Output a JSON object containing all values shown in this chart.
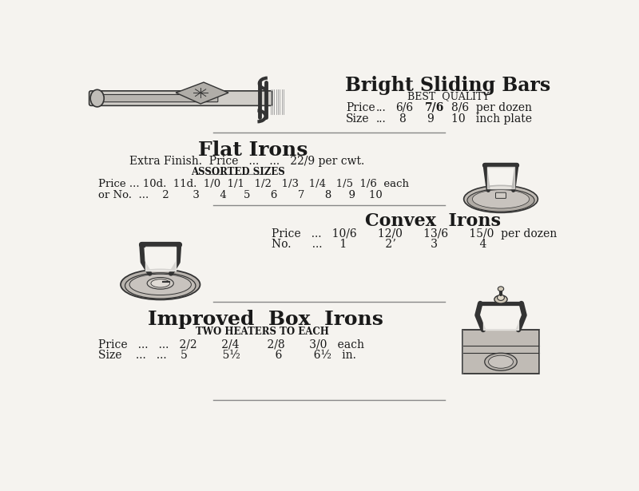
{
  "bg_color": "#f5f3ef",
  "text_color": "#1a1a1a",
  "title1": "Bright Sliding Bars",
  "subtitle1": "BEST  QUALITY",
  "price1a": "Price",
  "price1b": "...",
  "price1c": "6/6",
  "price1d": "7/6",
  "price1e": "8/6  per dozen",
  "size1a": "Size",
  "size1b": "...",
  "size1c": "8",
  "size1d": "9",
  "size1e": "10   inch plate",
  "title2": "Flat Irons",
  "subtitle2": "Extra Finish.  Price   ...   ...   22/9 per cwt.",
  "subtitle2b": "ASSORTED SIZES",
  "section2_price": "Price ... 10d.  11d.  1/0  1/1   1/2   1/3   1/4   1/5  1/6  each",
  "section2_no": "or No.  ...    2       3      4     5      6      7      8     9    10",
  "title3": "Convex  Irons",
  "section3_price": "Price   ...   10/6      12/0      13/6      15/0  per dozen",
  "section3_no": "No.      ...     1           2ʼ          3            4",
  "title4": "Improved  Box  Irons",
  "subtitle4": "TWO HEATERS TO EACH",
  "section4_price": "Price   ...   ...   2/2       2/4        2/8       3/0   each",
  "section4_size": "Size    ...   ...    5          5½          6         6½   in.",
  "divider_color": "#888888",
  "iron_color": "#888888",
  "iron_edge": "#333333"
}
